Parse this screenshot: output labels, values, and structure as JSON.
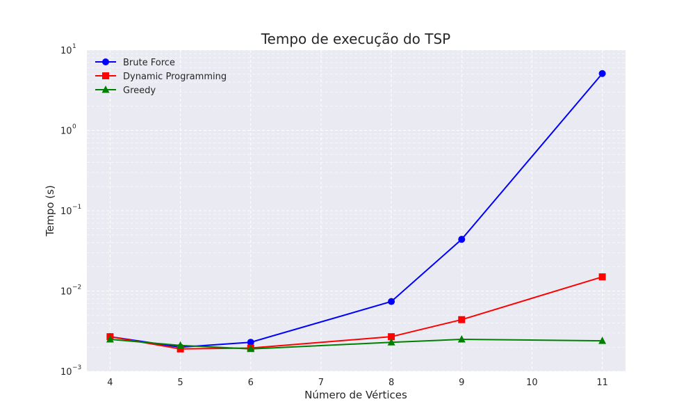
{
  "chart_data": {
    "type": "line",
    "title": "Tempo de execução do TSP",
    "xlabel": "Número de Vértices",
    "ylabel": "Tempo (s)",
    "yscale": "log",
    "ylim": [
      0.001,
      10
    ],
    "xlim": [
      3.67,
      11.33
    ],
    "x_ticks": [
      4,
      5,
      6,
      7,
      8,
      9,
      10,
      11
    ],
    "y_tick_labels": [
      {
        "value": 10,
        "base": "10",
        "exp": "1"
      },
      {
        "value": 1,
        "base": "10",
        "exp": "0"
      },
      {
        "value": 0.1,
        "base": "10",
        "exp": "−1"
      },
      {
        "value": 0.01,
        "base": "10",
        "exp": "−2"
      },
      {
        "value": 0.001,
        "base": "10",
        "exp": "−3"
      }
    ],
    "grid": true,
    "legend_position": "top-left",
    "x": [
      4,
      5,
      6,
      8,
      9,
      11
    ],
    "series": [
      {
        "name": "Brute Force",
        "color": "#0000ff",
        "marker": "circle",
        "values": [
          0.0027,
          0.002,
          0.0023,
          0.0074,
          0.044,
          5.1
        ]
      },
      {
        "name": "Dynamic Programming",
        "color": "#ff0000",
        "marker": "square",
        "values": [
          0.0027,
          0.0019,
          0.00195,
          0.0027,
          0.0044,
          0.015
        ]
      },
      {
        "name": "Greedy",
        "color": "#008000",
        "marker": "triangle",
        "values": [
          0.0025,
          0.0021,
          0.0019,
          0.0023,
          0.0025,
          0.0024
        ]
      }
    ]
  },
  "colors": {
    "plot_background": "#eaeaf2",
    "grid": "#ffffff",
    "text": "#262626"
  }
}
